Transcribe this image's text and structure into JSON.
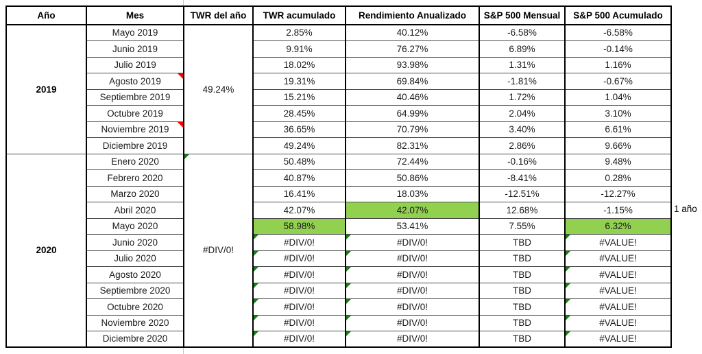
{
  "colors": {
    "highlight_green": "#92D050",
    "error_indicator_green": "#148014",
    "comment_indicator_red": "#FF0000"
  },
  "annotations": {
    "period_label": "1 año",
    "period_label_row": "Abril 2020"
  },
  "table": {
    "headers": [
      "Año",
      "Mes",
      "TWR del año",
      "TWR acumulado",
      "Rendimiento Anualizado",
      "S&P 500 Mensual",
      "S&P 500 Acumulado"
    ],
    "year_groups": [
      {
        "year": "2019",
        "twr_del_ano": "49.24%",
        "twr_del_ano_error_indicator": false,
        "rows": [
          {
            "mes": "Mayo 2019",
            "has_comment": false,
            "twr_acumulado": "2.85%",
            "rendimiento_anualizado": "40.12%",
            "sp500_mensual": "-6.58%",
            "sp500_acumulado": "-6.58%",
            "highlight": [],
            "error_indicators": []
          },
          {
            "mes": "Junio 2019",
            "has_comment": false,
            "twr_acumulado": "9.91%",
            "rendimiento_anualizado": "76.27%",
            "sp500_mensual": "6.89%",
            "sp500_acumulado": "-0.14%",
            "highlight": [],
            "error_indicators": []
          },
          {
            "mes": "Julio 2019",
            "has_comment": false,
            "twr_acumulado": "18.02%",
            "rendimiento_anualizado": "93.98%",
            "sp500_mensual": "1.31%",
            "sp500_acumulado": "1.16%",
            "highlight": [],
            "error_indicators": []
          },
          {
            "mes": "Agosto 2019",
            "has_comment": true,
            "twr_acumulado": "19.31%",
            "rendimiento_anualizado": "69.84%",
            "sp500_mensual": "-1.81%",
            "sp500_acumulado": "-0.67%",
            "highlight": [],
            "error_indicators": []
          },
          {
            "mes": "Septiembre 2019",
            "has_comment": false,
            "twr_acumulado": "15.21%",
            "rendimiento_anualizado": "40.46%",
            "sp500_mensual": "1.72%",
            "sp500_acumulado": "1.04%",
            "highlight": [],
            "error_indicators": []
          },
          {
            "mes": "Octubre 2019",
            "has_comment": false,
            "twr_acumulado": "28.45%",
            "rendimiento_anualizado": "64.99%",
            "sp500_mensual": "2.04%",
            "sp500_acumulado": "3.10%",
            "highlight": [],
            "error_indicators": []
          },
          {
            "mes": "Noviembre 2019",
            "has_comment": true,
            "twr_acumulado": "36.65%",
            "rendimiento_anualizado": "70.79%",
            "sp500_mensual": "3.40%",
            "sp500_acumulado": "6.61%",
            "highlight": [],
            "error_indicators": []
          },
          {
            "mes": "Diciembre 2019",
            "has_comment": false,
            "twr_acumulado": "49.24%",
            "rendimiento_anualizado": "82.31%",
            "sp500_mensual": "2.86%",
            "sp500_acumulado": "9.66%",
            "highlight": [],
            "error_indicators": []
          }
        ]
      },
      {
        "year": "2020",
        "twr_del_ano": "#DIV/0!",
        "twr_del_ano_error_indicator": true,
        "rows": [
          {
            "mes": "Enero 2020",
            "has_comment": false,
            "twr_acumulado": "50.48%",
            "rendimiento_anualizado": "72.44%",
            "sp500_mensual": "-0.16%",
            "sp500_acumulado": "9.48%",
            "highlight": [],
            "error_indicators": []
          },
          {
            "mes": "Febrero 2020",
            "has_comment": false,
            "twr_acumulado": "40.87%",
            "rendimiento_anualizado": "50.86%",
            "sp500_mensual": "-8.41%",
            "sp500_acumulado": "0.28%",
            "highlight": [],
            "error_indicators": []
          },
          {
            "mes": "Marzo 2020",
            "has_comment": false,
            "twr_acumulado": "16.41%",
            "rendimiento_anualizado": "18.03%",
            "sp500_mensual": "-12.51%",
            "sp500_acumulado": "-12.27%",
            "highlight": [],
            "error_indicators": []
          },
          {
            "mes": "Abril 2020",
            "has_comment": false,
            "twr_acumulado": "42.07%",
            "rendimiento_anualizado": "42.07%",
            "sp500_mensual": "12.68%",
            "sp500_acumulado": "-1.15%",
            "highlight": [
              "rendimiento_anualizado"
            ],
            "error_indicators": []
          },
          {
            "mes": "Mayo 2020",
            "has_comment": false,
            "twr_acumulado": "58.98%",
            "rendimiento_anualizado": "53.41%",
            "sp500_mensual": "7.55%",
            "sp500_acumulado": "6.32%",
            "highlight": [
              "twr_acumulado",
              "sp500_acumulado"
            ],
            "error_indicators": []
          },
          {
            "mes": "Junio 2020",
            "has_comment": false,
            "twr_acumulado": "#DIV/0!",
            "rendimiento_anualizado": "#DIV/0!",
            "sp500_mensual": "TBD",
            "sp500_acumulado": "#VALUE!",
            "highlight": [],
            "error_indicators": [
              "twr_acumulado",
              "rendimiento_anualizado",
              "sp500_acumulado"
            ]
          },
          {
            "mes": "Julio 2020",
            "has_comment": false,
            "twr_acumulado": "#DIV/0!",
            "rendimiento_anualizado": "#DIV/0!",
            "sp500_mensual": "TBD",
            "sp500_acumulado": "#VALUE!",
            "highlight": [],
            "error_indicators": [
              "twr_acumulado",
              "rendimiento_anualizado",
              "sp500_acumulado"
            ]
          },
          {
            "mes": "Agosto 2020",
            "has_comment": false,
            "twr_acumulado": "#DIV/0!",
            "rendimiento_anualizado": "#DIV/0!",
            "sp500_mensual": "TBD",
            "sp500_acumulado": "#VALUE!",
            "highlight": [],
            "error_indicators": [
              "twr_acumulado",
              "rendimiento_anualizado",
              "sp500_acumulado"
            ]
          },
          {
            "mes": "Septiembre 2020",
            "has_comment": false,
            "twr_acumulado": "#DIV/0!",
            "rendimiento_anualizado": "#DIV/0!",
            "sp500_mensual": "TBD",
            "sp500_acumulado": "#VALUE!",
            "highlight": [],
            "error_indicators": [
              "twr_acumulado",
              "rendimiento_anualizado",
              "sp500_acumulado"
            ]
          },
          {
            "mes": "Octubre 2020",
            "has_comment": false,
            "twr_acumulado": "#DIV/0!",
            "rendimiento_anualizado": "#DIV/0!",
            "sp500_mensual": "TBD",
            "sp500_acumulado": "#VALUE!",
            "highlight": [],
            "error_indicators": [
              "twr_acumulado",
              "rendimiento_anualizado",
              "sp500_acumulado"
            ]
          },
          {
            "mes": "Noviembre 2020",
            "has_comment": false,
            "twr_acumulado": "#DIV/0!",
            "rendimiento_anualizado": "#DIV/0!",
            "sp500_mensual": "TBD",
            "sp500_acumulado": "#VALUE!",
            "highlight": [],
            "error_indicators": [
              "twr_acumulado",
              "rendimiento_anualizado",
              "sp500_acumulado"
            ]
          },
          {
            "mes": "Diciembre 2020",
            "has_comment": false,
            "twr_acumulado": "#DIV/0!",
            "rendimiento_anualizado": "#DIV/0!",
            "sp500_mensual": "TBD",
            "sp500_acumulado": "#VALUE!",
            "highlight": [],
            "error_indicators": [
              "twr_acumulado",
              "rendimiento_anualizado",
              "sp500_acumulado"
            ]
          }
        ]
      }
    ]
  }
}
